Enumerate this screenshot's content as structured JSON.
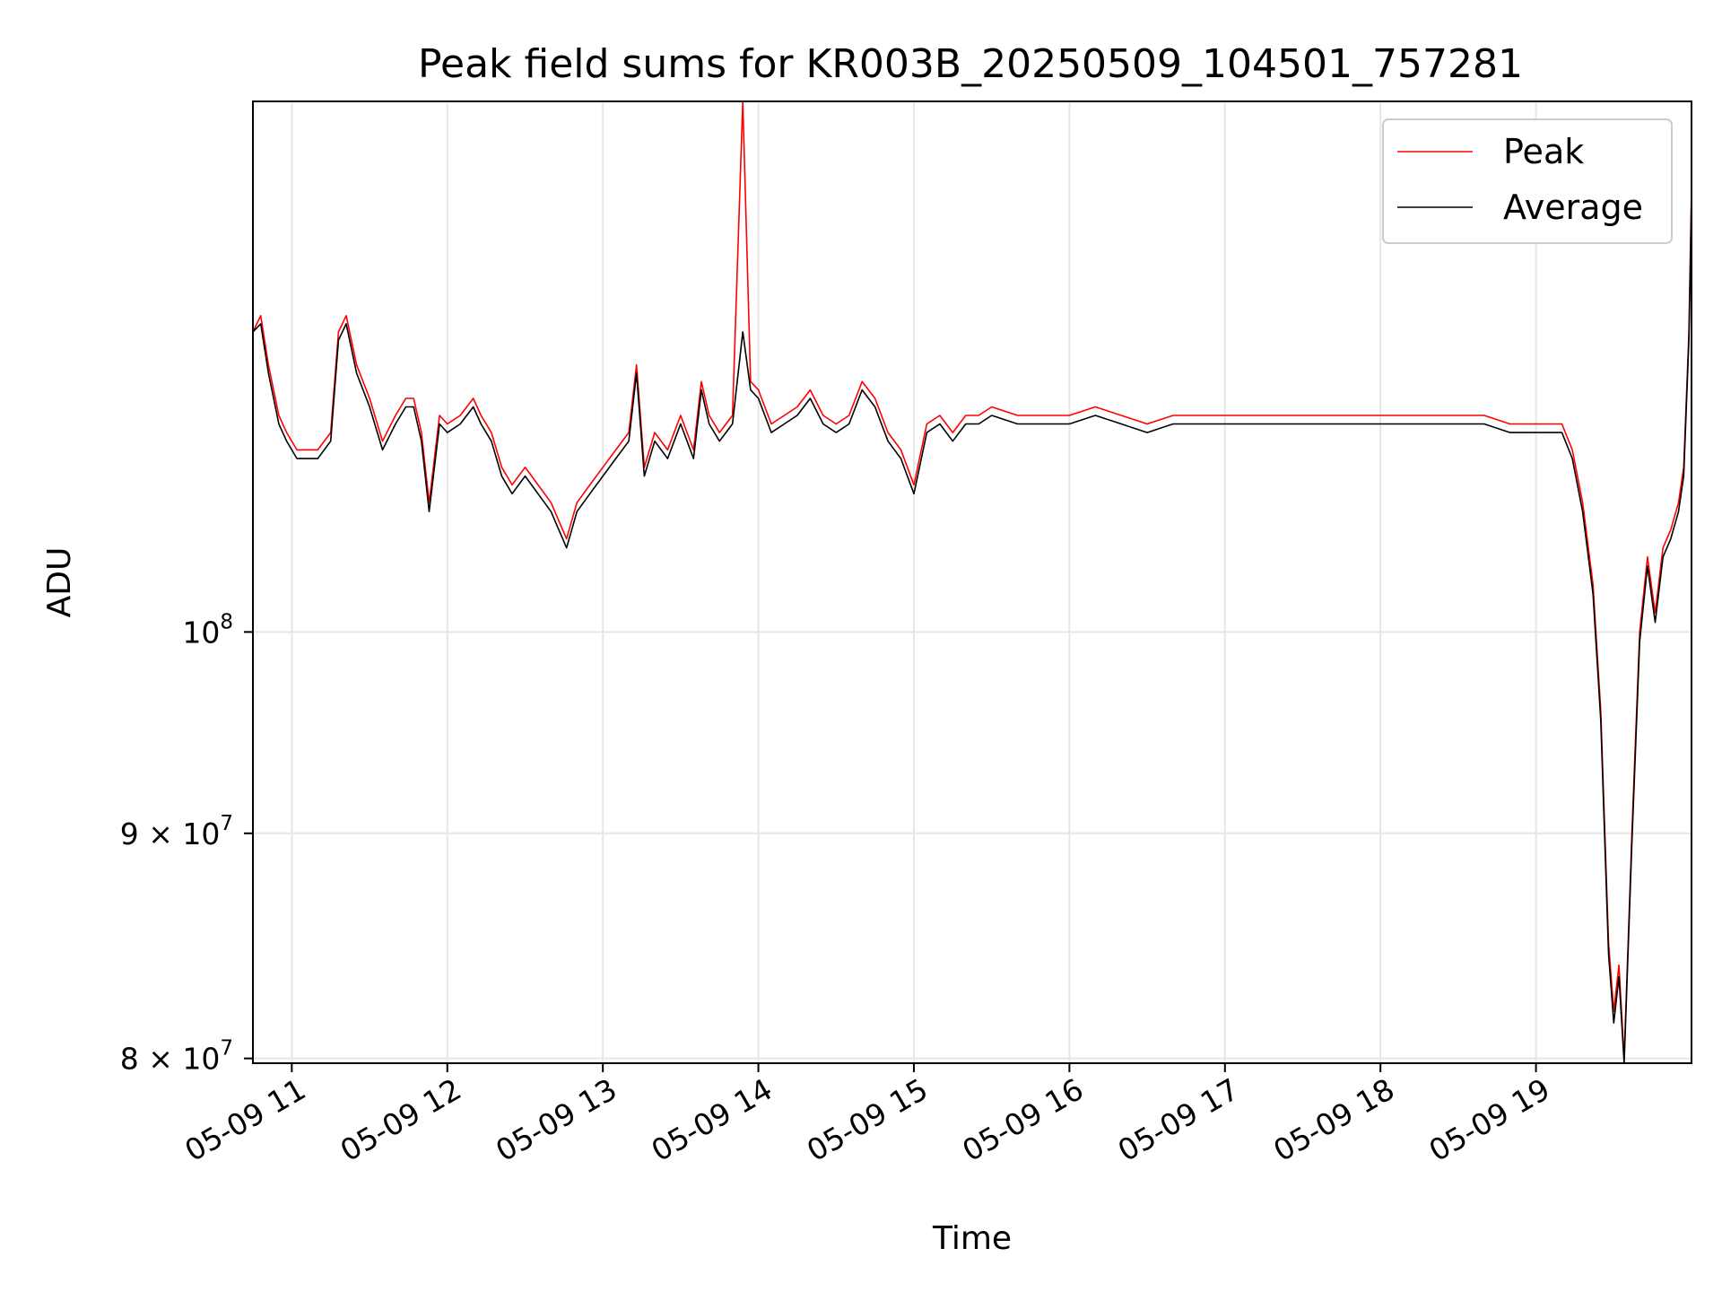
{
  "chart_data": {
    "type": "line",
    "title": "Peak field sums for KR003B_20250509_104501_757281",
    "xlabel": "Time",
    "ylabel": "ADU",
    "yscale": "log",
    "grid": true,
    "legend_position": "upper right",
    "xlim": [
      "05-09 10:45",
      "05-09 20:00"
    ],
    "ylim": [
      79800000,
      132000000
    ],
    "x_ticks": [
      {
        "label": "05-09 11",
        "time": "05-09 11:00"
      },
      {
        "label": "05-09 12",
        "time": "05-09 12:00"
      },
      {
        "label": "05-09 13",
        "time": "05-09 13:00"
      },
      {
        "label": "05-09 14",
        "time": "05-09 14:00"
      },
      {
        "label": "05-09 15",
        "time": "05-09 15:00"
      },
      {
        "label": "05-09 16",
        "time": "05-09 16:00"
      },
      {
        "label": "05-09 17",
        "time": "05-09 17:00"
      },
      {
        "label": "05-09 18",
        "time": "05-09 18:00"
      },
      {
        "label": "05-09 19",
        "time": "05-09 19:00"
      }
    ],
    "y_ticks": [
      {
        "label_base": "10",
        "label_exp": "8",
        "value": 100000000
      },
      {
        "label_base": "9 × 10",
        "label_exp": "7",
        "value": 90000000
      },
      {
        "label_base": "8 × 10",
        "label_exp": "7",
        "value": 80000000
      }
    ],
    "x": [
      "05-09 10:45",
      "05-09 10:48",
      "05-09 10:51",
      "05-09 10:55",
      "05-09 10:58",
      "05-09 11:02",
      "05-09 11:06",
      "05-09 11:10",
      "05-09 11:15",
      "05-09 11:18",
      "05-09 11:21",
      "05-09 11:25",
      "05-09 11:30",
      "05-09 11:35",
      "05-09 11:40",
      "05-09 11:44",
      "05-09 11:47",
      "05-09 11:50",
      "05-09 11:53",
      "05-09 11:57",
      "05-09 12:00",
      "05-09 12:05",
      "05-09 12:10",
      "05-09 12:13",
      "05-09 12:17",
      "05-09 12:21",
      "05-09 12:25",
      "05-09 12:30",
      "05-09 12:35",
      "05-09 12:40",
      "05-09 12:43",
      "05-09 12:46",
      "05-09 12:50",
      "05-09 12:55",
      "05-09 13:00",
      "05-09 13:05",
      "05-09 13:10",
      "05-09 13:13",
      "05-09 13:16",
      "05-09 13:20",
      "05-09 13:25",
      "05-09 13:30",
      "05-09 13:35",
      "05-09 13:38",
      "05-09 13:41",
      "05-09 13:45",
      "05-09 13:50",
      "05-09 13:54",
      "05-09 13:57",
      "05-09 14:00",
      "05-09 14:05",
      "05-09 14:10",
      "05-09 14:15",
      "05-09 14:20",
      "05-09 14:25",
      "05-09 14:30",
      "05-09 14:35",
      "05-09 14:40",
      "05-09 14:45",
      "05-09 14:50",
      "05-09 14:55",
      "05-09 15:00",
      "05-09 15:05",
      "05-09 15:10",
      "05-09 15:15",
      "05-09 15:20",
      "05-09 15:25",
      "05-09 15:30",
      "05-09 15:40",
      "05-09 15:50",
      "05-09 16:00",
      "05-09 16:10",
      "05-09 16:20",
      "05-09 16:30",
      "05-09 16:40",
      "05-09 16:50",
      "05-09 17:00",
      "05-09 17:10",
      "05-09 17:20",
      "05-09 17:30",
      "05-09 17:40",
      "05-09 17:50",
      "05-09 18:00",
      "05-09 18:10",
      "05-09 18:20",
      "05-09 18:30",
      "05-09 18:40",
      "05-09 18:50",
      "05-09 19:00",
      "05-09 19:10",
      "05-09 19:14",
      "05-09 19:18",
      "05-09 19:22",
      "05-09 19:25",
      "05-09 19:28",
      "05-09 19:30",
      "05-09 19:32",
      "05-09 19:34",
      "05-09 19:37",
      "05-09 19:40",
      "05-09 19:43",
      "05-09 19:46",
      "05-09 19:49",
      "05-09 19:52",
      "05-09 19:55",
      "05-09 19:57",
      "05-09 19:59",
      "05-09 20:00"
    ],
    "series": [
      {
        "name": "Peak",
        "color": "#ff0000",
        "values": [
          117000000,
          118000000,
          115000000,
          112000000,
          111000000,
          110000000,
          110000000,
          110000000,
          111000000,
          117000000,
          118000000,
          115000000,
          113000000,
          110500000,
          112000000,
          113000000,
          113000000,
          111000000,
          107000000,
          112000000,
          111500000,
          112000000,
          113000000,
          112000000,
          111000000,
          109000000,
          108000000,
          109000000,
          108000000,
          107000000,
          106000000,
          105000000,
          107000000,
          108000000,
          109000000,
          110000000,
          111000000,
          115000000,
          109000000,
          111000000,
          110000000,
          112000000,
          110000000,
          114000000,
          112000000,
          111000000,
          112000000,
          132000000,
          114000000,
          113500000,
          111500000,
          112000000,
          112500000,
          113500000,
          112000000,
          111500000,
          112000000,
          114000000,
          113000000,
          111000000,
          110000000,
          108000000,
          111500000,
          112000000,
          111000000,
          112000000,
          112000000,
          112500000,
          112000000,
          112000000,
          112000000,
          112500000,
          112000000,
          111500000,
          112000000,
          112000000,
          112000000,
          112000000,
          112000000,
          112000000,
          112000000,
          112000000,
          112000000,
          112000000,
          112000000,
          112000000,
          112000000,
          111500000,
          111500000,
          111500000,
          110000000,
          107000000,
          102500000,
          96000000,
          85000000,
          82000000,
          84000000,
          80000000,
          90000000,
          100000000,
          104000000,
          101000000,
          104500000,
          105500000,
          107000000,
          109000000,
          117000000,
          126000000
        ]
      },
      {
        "name": "Average",
        "color": "#000000",
        "values": [
          117000000,
          117500000,
          114500000,
          111500000,
          110500000,
          109500000,
          109500000,
          109500000,
          110500000,
          116500000,
          117500000,
          114500000,
          112500000,
          110000000,
          111500000,
          112500000,
          112500000,
          110500000,
          106500000,
          111500000,
          111000000,
          111500000,
          112500000,
          111500000,
          110500000,
          108500000,
          107500000,
          108500000,
          107500000,
          106500000,
          105500000,
          104500000,
          106500000,
          107500000,
          108500000,
          109500000,
          110500000,
          114500000,
          108500000,
          110500000,
          109500000,
          111500000,
          109500000,
          113500000,
          111500000,
          110500000,
          111500000,
          117000000,
          113500000,
          113000000,
          111000000,
          111500000,
          112000000,
          113000000,
          111500000,
          111000000,
          111500000,
          113500000,
          112500000,
          110500000,
          109500000,
          107500000,
          111000000,
          111500000,
          110500000,
          111500000,
          111500000,
          112000000,
          111500000,
          111500000,
          111500000,
          112000000,
          111500000,
          111000000,
          111500000,
          111500000,
          111500000,
          111500000,
          111500000,
          111500000,
          111500000,
          111500000,
          111500000,
          111500000,
          111500000,
          111500000,
          111500000,
          111000000,
          111000000,
          111000000,
          109500000,
          106500000,
          102000000,
          95500000,
          84500000,
          81500000,
          83500000,
          79800000,
          89500000,
          99500000,
          103500000,
          100500000,
          104000000,
          105000000,
          106500000,
          108500000,
          116500000,
          125500000
        ]
      }
    ]
  }
}
